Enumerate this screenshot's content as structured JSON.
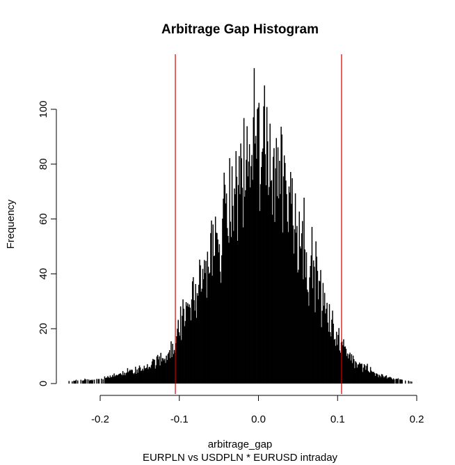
{
  "chart_data": {
    "type": "bar",
    "title": "Arbitrage Gap Histogram",
    "xlabel": "arbitrage_gap",
    "ylabel": "Frequency",
    "subtitle": "EURPLN vs USDPLN * EURUSD intraday",
    "xlim": [
      -0.245,
      0.2
    ],
    "ylim": [
      0,
      118
    ],
    "x_ticks": [
      -0.2,
      -0.1,
      0.0,
      0.1,
      0.2
    ],
    "x_tick_labels": [
      "-0.2",
      "-0.1",
      "0.0",
      "0.1",
      "0.2"
    ],
    "y_ticks": [
      0,
      20,
      40,
      60,
      80,
      100
    ],
    "y_tick_labels": [
      "0",
      "20",
      "40",
      "60",
      "80",
      "100"
    ],
    "bin_range": [
      -0.24,
      0.195
    ],
    "bin_width": 0.001,
    "distribution_profile": {
      "x": [
        -0.24,
        -0.2,
        -0.15,
        -0.12,
        -0.105,
        -0.1,
        -0.09,
        -0.08,
        -0.07,
        -0.06,
        -0.05,
        -0.04,
        -0.03,
        -0.02,
        -0.01,
        0.0,
        0.01,
        0.02,
        0.03,
        0.04,
        0.05,
        0.06,
        0.07,
        0.08,
        0.09,
        0.1,
        0.105,
        0.12,
        0.15,
        0.2
      ],
      "typical_frequency": [
        1,
        1.5,
        5,
        9,
        14,
        20,
        26,
        32,
        38,
        45,
        52,
        60,
        68,
        75,
        82,
        86,
        84,
        80,
        74,
        66,
        58,
        48,
        38,
        30,
        22,
        16,
        13,
        8,
        3,
        0.5
      ]
    },
    "max_frequency": 115,
    "vlines": [
      {
        "x": -0.105,
        "color": "#cc0000"
      },
      {
        "x": 0.105,
        "color": "#cc0000"
      }
    ],
    "bar_color": "#000000",
    "grid": false,
    "legend": "none"
  }
}
